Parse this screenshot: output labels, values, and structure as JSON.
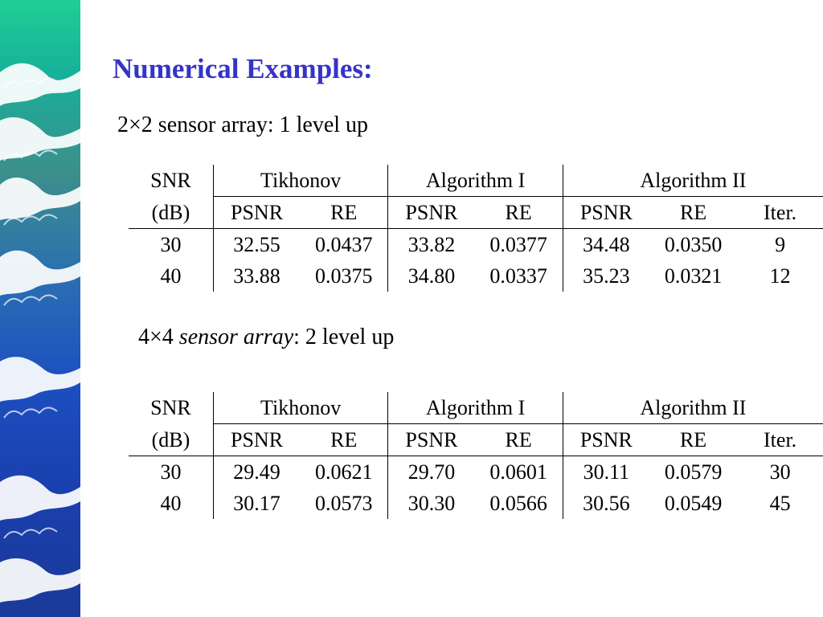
{
  "slide": {
    "title": "Numerical Examples:",
    "section1": {
      "heading_prefix": "2×2 sensor array:  1 level up"
    },
    "section2": {
      "heading_num": "4×4 ",
      "heading_italic": "sensor array",
      "heading_rest": ": 2 level up"
    }
  },
  "table_headers": {
    "snr": "SNR",
    "db": "(dB)",
    "tikhonov": "Tikhonov",
    "alg1": "Algorithm I",
    "alg2": "Algorithm II",
    "psnr": "PSNR",
    "re": "RE",
    "iter": "Iter."
  },
  "table1": {
    "rows": [
      {
        "snr": "30",
        "tik_psnr": "32.55",
        "tik_re": "0.0437",
        "a1_psnr": "33.82",
        "a1_re": "0.0377",
        "a2_psnr": "34.48",
        "a2_re": "0.0350",
        "iter": "9"
      },
      {
        "snr": "40",
        "tik_psnr": "33.88",
        "tik_re": "0.0375",
        "a1_psnr": "34.80",
        "a1_re": "0.0337",
        "a2_psnr": "35.23",
        "a2_re": "0.0321",
        "iter": "12"
      }
    ]
  },
  "table2": {
    "rows": [
      {
        "snr": "30",
        "tik_psnr": "29.49",
        "tik_re": "0.0621",
        "a1_psnr": "29.70",
        "a1_re": "0.0601",
        "a2_psnr": "30.11",
        "a2_re": "0.0579",
        "iter": "30"
      },
      {
        "snr": "40",
        "tik_psnr": "30.17",
        "tik_re": "0.0573",
        "a1_psnr": "30.30",
        "a1_re": "0.0566",
        "a2_psnr": "30.56",
        "a2_re": "0.0549",
        "iter": "45"
      }
    ]
  },
  "colors": {
    "title": "#3434c8",
    "wave_top": "#1ecf95",
    "wave_bottom": "#1b3a98"
  }
}
